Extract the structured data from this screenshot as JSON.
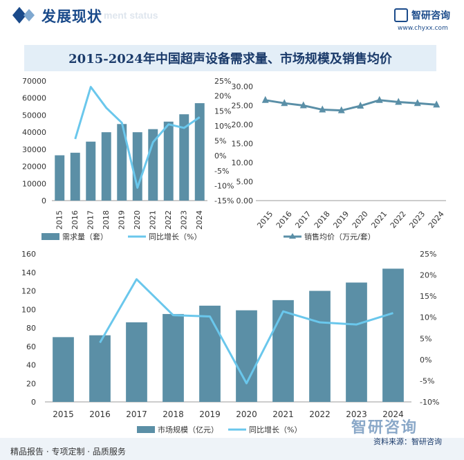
{
  "header": {
    "title": "发展现状",
    "subtitle": "ment status",
    "logo_name": "智研咨询",
    "logo_url": "www.chyxx.com"
  },
  "footer": {
    "left": "精品报告 · 专项定制 · 品质服务",
    "brand": "智研咨询",
    "source": "资料来源：智研咨询"
  },
  "colors": {
    "bar": "#5b8fa6",
    "line": "#6ac7ec",
    "line_dark": "#5a8fa7",
    "title_bg": "#e3eef7"
  },
  "chart_data": [
    {
      "id": "demand",
      "type": "bar",
      "title": "2015-2024年中国超声设备需求量、市场规模及销售均价",
      "categories": [
        "2015",
        "2016",
        "2017",
        "2018",
        "2019",
        "2020",
        "2021",
        "2022",
        "2023",
        "2024"
      ],
      "series": [
        {
          "name": "需求量（套）",
          "type": "bar",
          "axis": "left",
          "values": [
            26500,
            28000,
            34500,
            40000,
            44800,
            40000,
            41800,
            46200,
            50500,
            57000
          ]
        },
        {
          "name": "同比增长（%）",
          "type": "line",
          "axis": "right",
          "values": [
            null,
            5.6,
            23.0,
            16.0,
            11.0,
            -10.7,
            4.5,
            10.5,
            9.3,
            12.9
          ]
        }
      ],
      "left_axis": {
        "min": 0,
        "max": 70000,
        "ticks": [
          "0",
          "10000",
          "20000",
          "30000",
          "40000",
          "50000",
          "60000",
          "70000"
        ]
      },
      "right_axis": {
        "min": -15,
        "max": 25,
        "ticks": [
          "-15%",
          "-10%",
          "-5%",
          "0%",
          "5%",
          "10%",
          "15%",
          "20%",
          "25%"
        ]
      },
      "legend": "bottom"
    },
    {
      "id": "price",
      "type": "line",
      "categories": [
        "2015",
        "2016",
        "2017",
        "2018",
        "2019",
        "2020",
        "2021",
        "2022",
        "2023",
        "2024"
      ],
      "series": [
        {
          "name": "销售均价（万元/套）",
          "values": [
            26.4,
            25.6,
            25.0,
            23.9,
            23.7,
            24.9,
            26.4,
            25.9,
            25.6,
            25.2
          ]
        }
      ],
      "y_axis": {
        "min": 0,
        "max": 30,
        "ticks": [
          "0.00",
          "5.00",
          "10.00",
          "15.00",
          "20.00",
          "25.00",
          "30.00"
        ]
      },
      "legend": "bottom"
    },
    {
      "id": "market",
      "type": "bar",
      "categories": [
        "2015",
        "2016",
        "2017",
        "2018",
        "2019",
        "2020",
        "2021",
        "2022",
        "2023",
        "2024"
      ],
      "series": [
        {
          "name": "市场规模（亿元）",
          "type": "bar",
          "axis": "left",
          "values": [
            70,
            72,
            86,
            95,
            104,
            99,
            110,
            120,
            129,
            144
          ]
        },
        {
          "name": "同比增长（%）",
          "type": "line",
          "axis": "right",
          "values": [
            null,
            4.0,
            19.0,
            10.5,
            10.2,
            -5.6,
            11.4,
            8.8,
            8.3,
            11.0
          ]
        }
      ],
      "left_axis": {
        "min": 0,
        "max": 160,
        "ticks": [
          "0",
          "20",
          "40",
          "60",
          "80",
          "100",
          "120",
          "140",
          "160"
        ]
      },
      "right_axis": {
        "min": -10,
        "max": 25,
        "ticks": [
          "-10%",
          "-5%",
          "0%",
          "5%",
          "10%",
          "15%",
          "20%",
          "25%"
        ]
      },
      "legend": "bottom"
    }
  ]
}
